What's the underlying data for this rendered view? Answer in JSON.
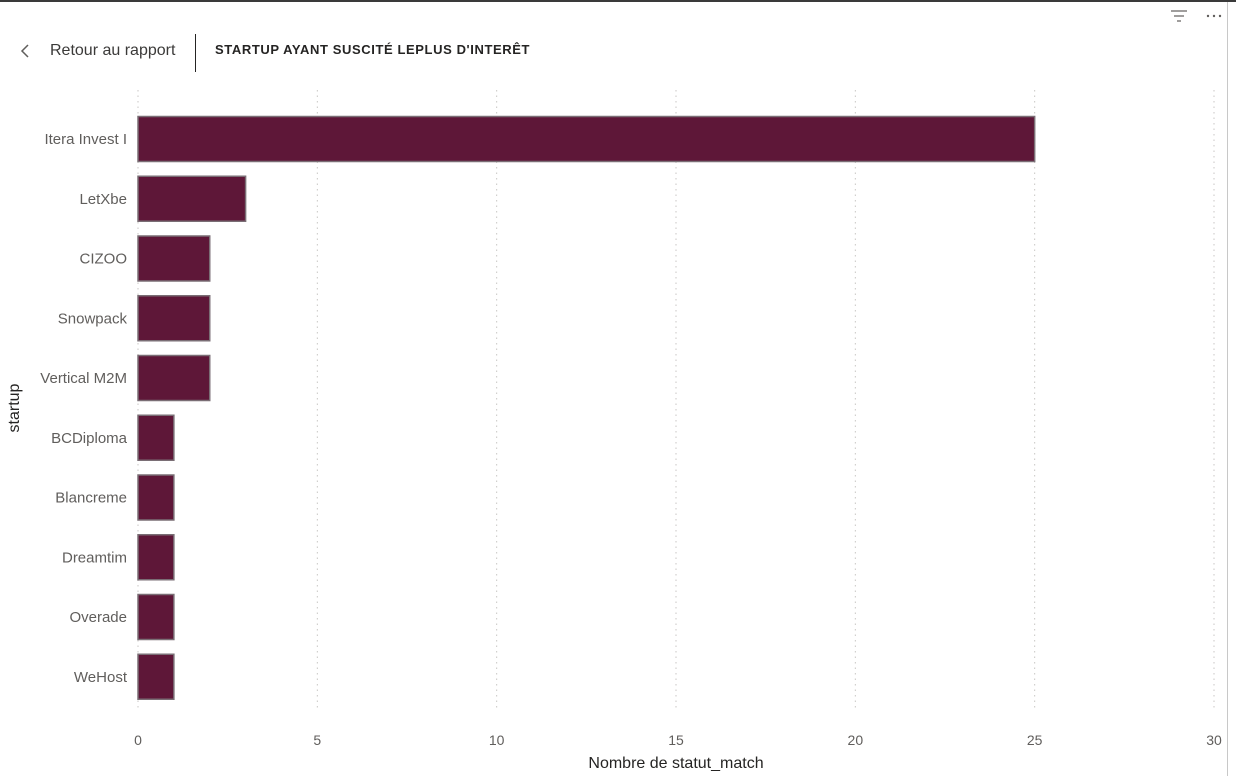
{
  "header": {
    "back_label": "Retour au rapport",
    "title": "STARTUP AYANT SUSCITÉ LEPLUS D'INTERÊT",
    "icons": [
      "filter-icon",
      "more-options-icon",
      "chevron-left-icon"
    ]
  },
  "colors": {
    "bar_fill": "#5e1738",
    "bar_stroke": "#7a6e75",
    "grid": "#c8c6c4",
    "label": "#605e5c",
    "axis_title": "#252423"
  },
  "chart_data": {
    "type": "bar",
    "orientation": "horizontal",
    "title": "STARTUP AYANT SUSCITÉ LEPLUS D'INTERÊT",
    "categories": [
      "Itera Invest I",
      "LetXbe",
      "CIZOO",
      "Snowpack",
      "Vertical M2M",
      "BCDiploma",
      "Blancreme",
      "Dreamtim",
      "Overade",
      "WeHost"
    ],
    "values": [
      25,
      3,
      2,
      2,
      2,
      1,
      1,
      1,
      1,
      1
    ],
    "xlabel": "Nombre de statut_match",
    "ylabel": "startup",
    "xlim": [
      0,
      30
    ],
    "xticks": [
      0,
      5,
      10,
      15,
      20,
      25,
      30
    ],
    "grid": "vertical dotted"
  }
}
